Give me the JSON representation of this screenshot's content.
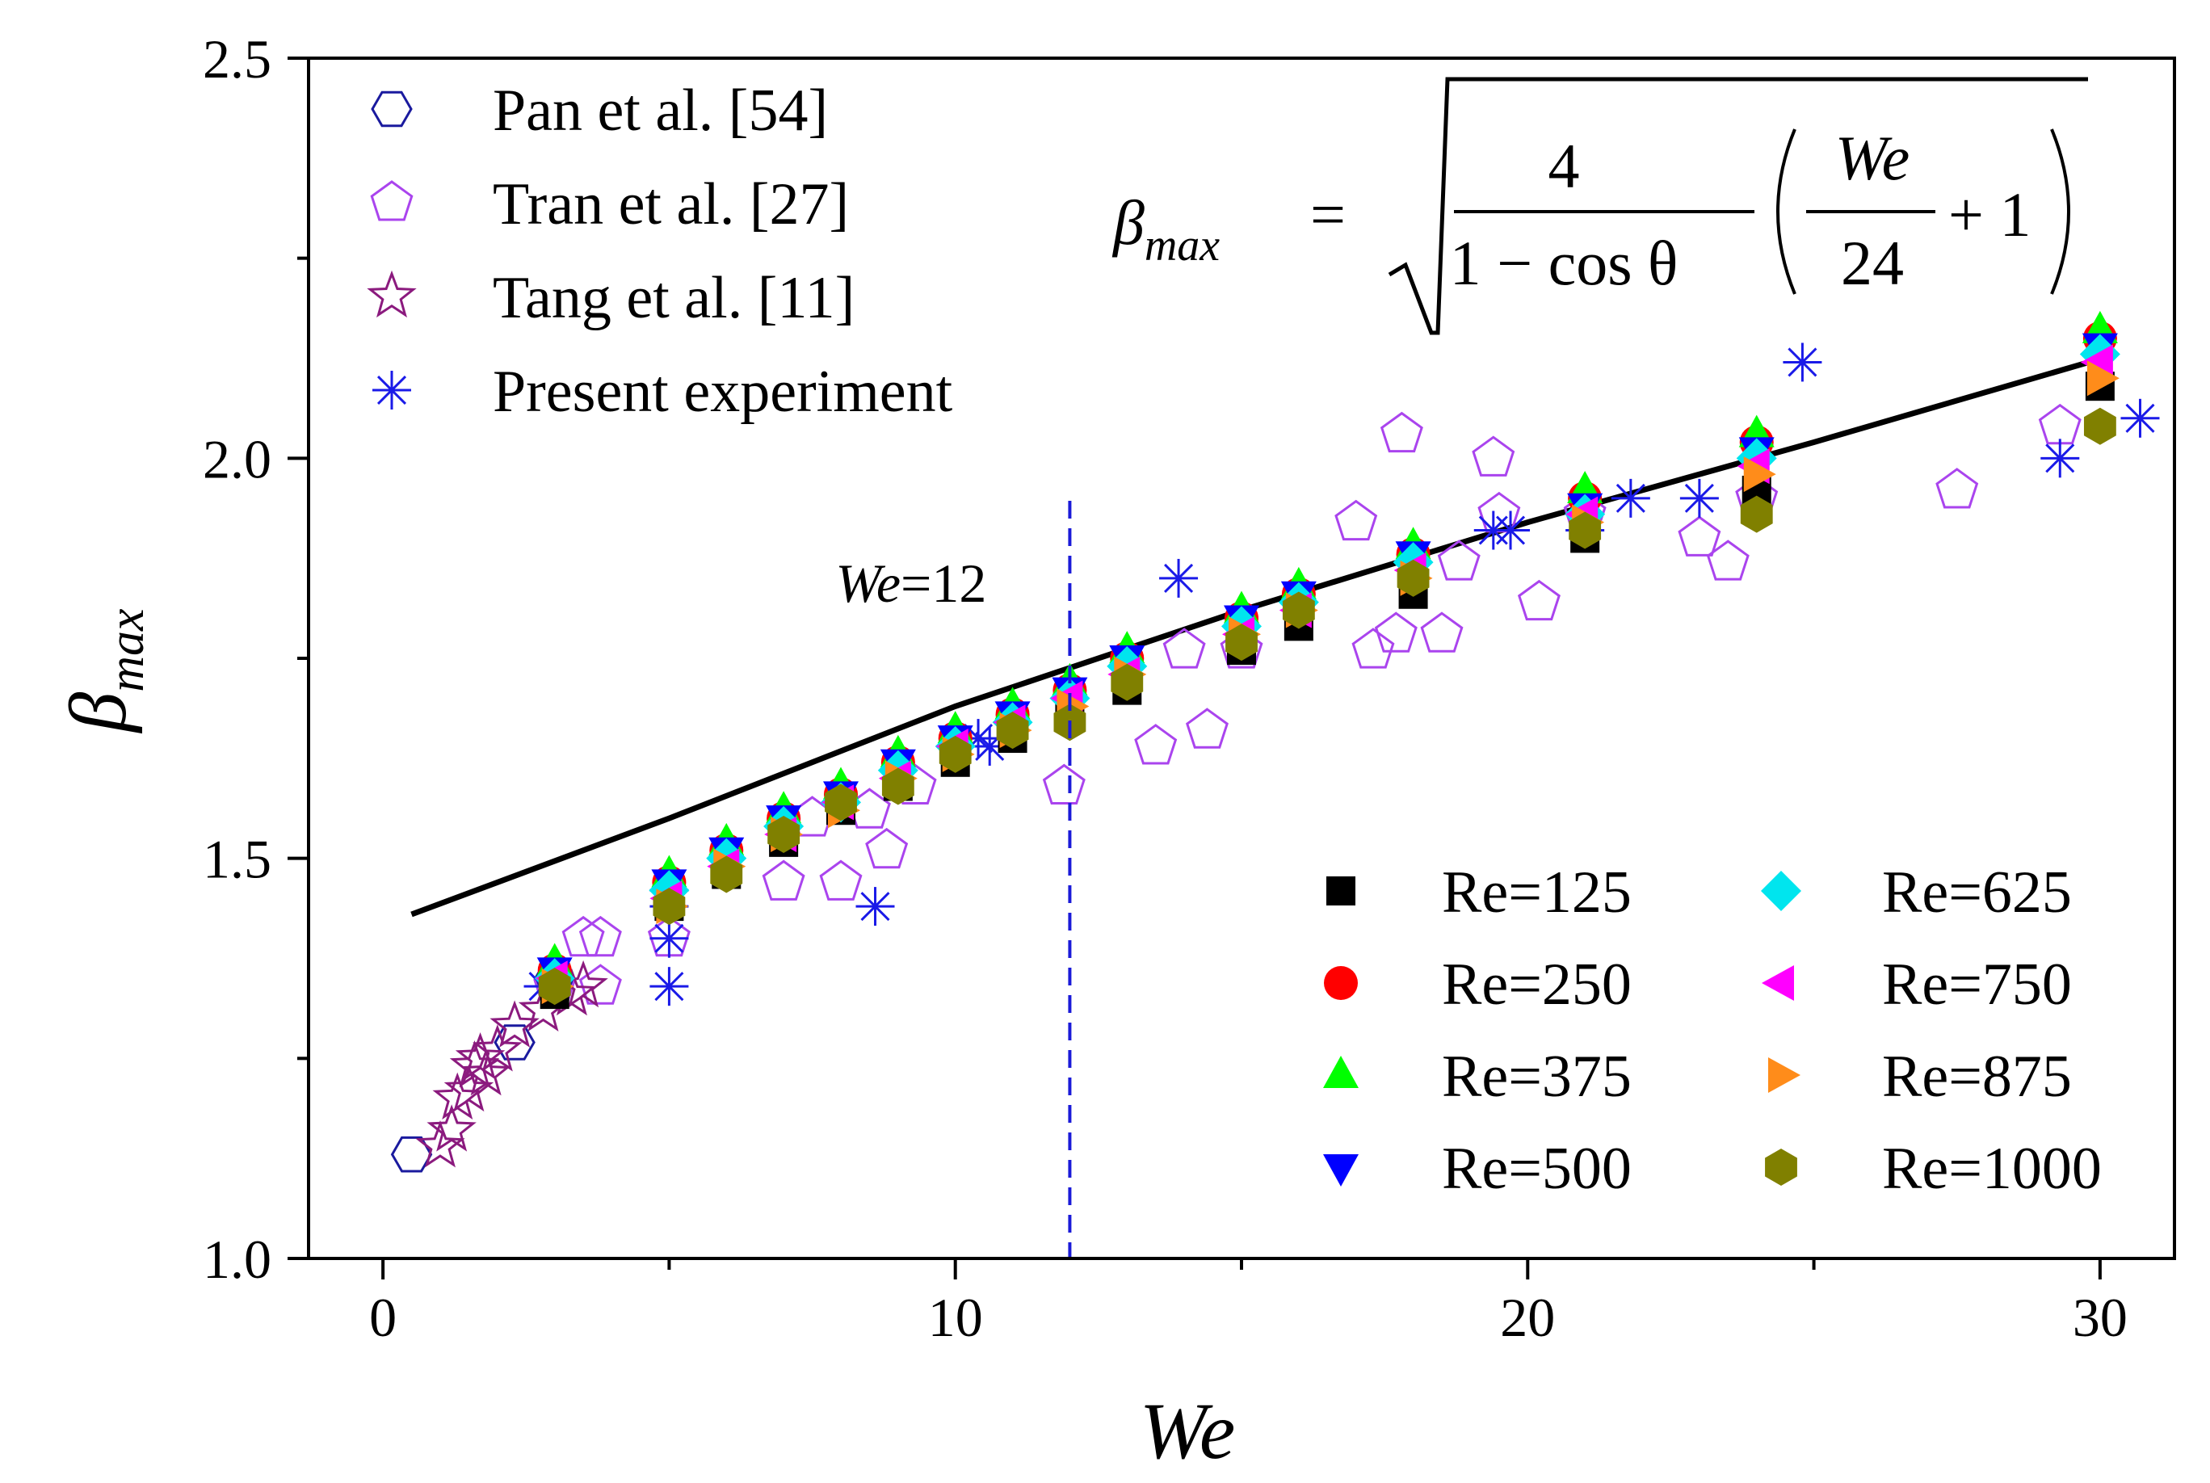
{
  "chart_data": {
    "type": "scatter",
    "title": "",
    "xlabel": "We",
    "ylabel_symbol": "β",
    "ylabel_subscript": "max",
    "xlim": [
      -1.3,
      31.3
    ],
    "ylim": [
      1.0,
      2.5
    ],
    "xticks": [
      "0",
      "10",
      "20",
      "30"
    ],
    "xtick_values": [
      0,
      10,
      20,
      30
    ],
    "yticks": [
      "1.0",
      "1.5",
      "2.0",
      "2.5"
    ],
    "ytick_values": [
      1.0,
      1.5,
      2.0,
      2.5
    ],
    "grid": false,
    "equation": {
      "lhs_symbol": "β",
      "lhs_subscript": "max",
      "equals": "=",
      "numerator": "4",
      "denominator": "1 − cos θ",
      "inner_numerator": "We",
      "inner_denominator": "24",
      "plus_one": "+ 1"
    },
    "reference_line": {
      "x": 12,
      "label_italic": "We",
      "label_rest": "=12",
      "color": "#1a1ad8"
    },
    "model_curve": {
      "name": "β_max model",
      "color": "#000000",
      "points": [
        [
          0.5,
          1.43
        ],
        [
          5,
          1.55
        ],
        [
          10,
          1.69
        ],
        [
          15,
          1.81
        ],
        [
          20,
          1.92
        ],
        [
          25,
          2.02
        ],
        [
          29.8,
          2.12
        ]
      ]
    },
    "literature_series": [
      {
        "name": "Pan et al. [54]",
        "marker": "hexagon-open",
        "color": "#1a1a9e",
        "points": [
          [
            0.5,
            1.13
          ],
          [
            2.3,
            1.27
          ],
          [
            3.0,
            1.35
          ]
        ]
      },
      {
        "name": "Tran et al. [27]",
        "marker": "pentagon-open",
        "color": "#aa44ee",
        "points": [
          [
            3.0,
            1.34
          ],
          [
            3.5,
            1.4
          ],
          [
            3.8,
            1.4
          ],
          [
            3.8,
            1.34
          ],
          [
            5.0,
            1.4
          ],
          [
            7.0,
            1.47
          ],
          [
            7.5,
            1.55
          ],
          [
            8.0,
            1.47
          ],
          [
            8.5,
            1.56
          ],
          [
            8.8,
            1.51
          ],
          [
            9.3,
            1.59
          ],
          [
            11.9,
            1.59
          ],
          [
            13.5,
            1.64
          ],
          [
            14.0,
            1.76
          ],
          [
            14.4,
            1.66
          ],
          [
            15.0,
            1.76
          ],
          [
            17.0,
            1.92
          ],
          [
            17.3,
            1.76
          ],
          [
            17.7,
            1.78
          ],
          [
            17.8,
            2.03
          ],
          [
            18.5,
            1.78
          ],
          [
            18.8,
            1.87
          ],
          [
            19.4,
            2.0
          ],
          [
            19.5,
            1.93
          ],
          [
            20.2,
            1.82
          ],
          [
            21.0,
            1.93
          ],
          [
            23.0,
            1.9
          ],
          [
            23.5,
            1.87
          ],
          [
            24.0,
            1.95
          ],
          [
            27.5,
            1.96
          ],
          [
            29.3,
            2.04
          ]
        ]
      },
      {
        "name": "Tang et al. [11]",
        "marker": "star-open",
        "color": "#8b1a7e",
        "points": [
          [
            1.0,
            1.14
          ],
          [
            1.2,
            1.16
          ],
          [
            1.3,
            1.2
          ],
          [
            1.5,
            1.21
          ],
          [
            1.6,
            1.24
          ],
          [
            1.7,
            1.25
          ],
          [
            1.8,
            1.23
          ],
          [
            2.0,
            1.26
          ],
          [
            2.3,
            1.29
          ],
          [
            2.8,
            1.31
          ],
          [
            3.3,
            1.33
          ],
          [
            3.5,
            1.34
          ]
        ]
      },
      {
        "name": "Present experiment",
        "marker": "asterisk",
        "color": "#1a1ae8",
        "points": [
          [
            2.8,
            1.34
          ],
          [
            3.0,
            1.35
          ],
          [
            5.0,
            1.46
          ],
          [
            5.0,
            1.44
          ],
          [
            5.0,
            1.4
          ],
          [
            5.0,
            1.34
          ],
          [
            8.6,
            1.44
          ],
          [
            10.4,
            1.65
          ],
          [
            10.6,
            1.64
          ],
          [
            13.9,
            1.85
          ],
          [
            19.4,
            1.91
          ],
          [
            19.7,
            1.91
          ],
          [
            21.0,
            1.91
          ],
          [
            21.8,
            1.95
          ],
          [
            23.0,
            1.95
          ],
          [
            24.8,
            2.12
          ],
          [
            29.3,
            2.0
          ],
          [
            30.7,
            2.05
          ]
        ]
      }
    ],
    "x": [
      3,
      5,
      6,
      7,
      8,
      9,
      10,
      11,
      12,
      13,
      15,
      16,
      18,
      21,
      24,
      30
    ],
    "series": [
      {
        "name": "Re=125",
        "marker": "square",
        "color": "#000000",
        "values": [
          1.33,
          1.44,
          1.48,
          1.52,
          1.56,
          1.59,
          1.62,
          1.65,
          1.68,
          1.71,
          1.76,
          1.79,
          1.83,
          1.9,
          1.96,
          2.09
        ]
      },
      {
        "name": "Re=250",
        "marker": "circle",
        "color": "#ff0000",
        "values": [
          1.36,
          1.47,
          1.51,
          1.55,
          1.58,
          1.62,
          1.65,
          1.68,
          1.71,
          1.75,
          1.8,
          1.83,
          1.88,
          1.95,
          2.02,
          2.15
        ]
      },
      {
        "name": "Re=375",
        "marker": "triangle-up",
        "color": "#00ff00",
        "values": [
          1.37,
          1.48,
          1.52,
          1.56,
          1.59,
          1.63,
          1.66,
          1.69,
          1.72,
          1.76,
          1.81,
          1.84,
          1.89,
          1.96,
          2.03,
          2.16
        ]
      },
      {
        "name": "Re=500",
        "marker": "triangle-down",
        "color": "#0000ff",
        "values": [
          1.36,
          1.47,
          1.51,
          1.55,
          1.58,
          1.62,
          1.65,
          1.68,
          1.71,
          1.75,
          1.8,
          1.83,
          1.88,
          1.94,
          2.01,
          2.14
        ]
      },
      {
        "name": "Re=625",
        "marker": "diamond",
        "color": "#00e5ee",
        "values": [
          1.35,
          1.46,
          1.5,
          1.54,
          1.57,
          1.61,
          1.64,
          1.67,
          1.7,
          1.74,
          1.79,
          1.82,
          1.87,
          1.93,
          2.0,
          2.13
        ]
      },
      {
        "name": "Re=750",
        "marker": "triangle-left",
        "color": "#ff00ff",
        "values": [
          1.35,
          1.45,
          1.49,
          1.53,
          1.57,
          1.6,
          1.64,
          1.67,
          1.7,
          1.73,
          1.78,
          1.81,
          1.86,
          1.93,
          1.99,
          2.12
        ]
      },
      {
        "name": "Re=875",
        "marker": "triangle-right",
        "color": "#ff8c1a",
        "values": [
          1.34,
          1.44,
          1.49,
          1.53,
          1.56,
          1.6,
          1.63,
          1.66,
          1.69,
          1.73,
          1.78,
          1.81,
          1.85,
          1.92,
          1.98,
          2.1
        ]
      },
      {
        "name": "Re=1000",
        "marker": "hexagon",
        "color": "#808000",
        "values": [
          1.34,
          1.44,
          1.48,
          1.53,
          1.57,
          1.59,
          1.63,
          1.66,
          1.67,
          1.72,
          1.77,
          1.81,
          1.85,
          1.91,
          1.93,
          2.04
        ]
      }
    ],
    "legend_literature_position": "top-left",
    "legend_re_position": "bottom-right"
  }
}
